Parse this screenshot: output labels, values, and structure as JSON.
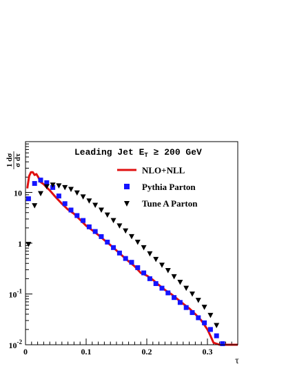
{
  "chart_data": {
    "type": "scatter",
    "title": {
      "prefix": "Leading Jet E",
      "subscript": "T",
      "suffix": " ≥ 200 GeV"
    },
    "xlabel": "τ",
    "ylabel": {
      "numerator": "1 dσ",
      "denominator": "σ dτ"
    },
    "xlim": [
      0,
      0.35
    ],
    "ylim": [
      0.01,
      100
    ],
    "yscale": "log",
    "xticks": [
      {
        "value": 0,
        "label": "0"
      },
      {
        "value": 0.1,
        "label": "0.1"
      },
      {
        "value": 0.2,
        "label": "0.2"
      },
      {
        "value": 0.3,
        "label": "0.3"
      }
    ],
    "yticks": [
      {
        "value": 0.01,
        "base": "10",
        "exp": "-2"
      },
      {
        "value": 0.1,
        "base": "10",
        "exp": "-1"
      },
      {
        "value": 1,
        "base": "1",
        "exp": ""
      },
      {
        "value": 10,
        "base": "10",
        "exp": ""
      }
    ],
    "legend_position": "top-right",
    "series": [
      {
        "name": "NLO+NLL",
        "type": "line",
        "color": "#e01010",
        "x": [
          0.003,
          0.006,
          0.009,
          0.012,
          0.015,
          0.018,
          0.021,
          0.025,
          0.03,
          0.035,
          0.04,
          0.05,
          0.06,
          0.07,
          0.08,
          0.09,
          0.1,
          0.11,
          0.12,
          0.13,
          0.14,
          0.15,
          0.16,
          0.17,
          0.18,
          0.19,
          0.2,
          0.21,
          0.22,
          0.23,
          0.24,
          0.25,
          0.26,
          0.27,
          0.28,
          0.29,
          0.3,
          0.305,
          0.31,
          0.32,
          0.35
        ],
        "y": [
          12,
          21,
          25,
          25,
          22,
          23,
          20,
          16,
          14.5,
          12.5,
          11,
          8,
          6,
          4.6,
          3.8,
          2.9,
          2.2,
          1.8,
          1.45,
          1.15,
          0.92,
          0.72,
          0.56,
          0.44,
          0.35,
          0.26,
          0.23,
          0.19,
          0.15,
          0.12,
          0.1,
          0.08,
          0.064,
          0.052,
          0.04,
          0.03,
          0.02,
          0.015,
          0.011,
          0.01,
          0.01
        ]
      },
      {
        "name": "Pythia Parton",
        "type": "scatter",
        "marker": "square",
        "color": "#1414ff",
        "x": [
          0.005,
          0.015,
          0.025,
          0.035,
          0.045,
          0.055,
          0.065,
          0.075,
          0.085,
          0.095,
          0.105,
          0.115,
          0.125,
          0.135,
          0.145,
          0.155,
          0.165,
          0.175,
          0.185,
          0.195,
          0.205,
          0.215,
          0.225,
          0.235,
          0.245,
          0.255,
          0.265,
          0.275,
          0.285,
          0.295,
          0.305,
          0.315,
          0.325
        ],
        "y": [
          7.5,
          15,
          17.5,
          15.5,
          12.5,
          8.5,
          6,
          4.5,
          3.5,
          2.8,
          2.1,
          1.7,
          1.35,
          1.05,
          0.82,
          0.64,
          0.5,
          0.42,
          0.33,
          0.26,
          0.2,
          0.16,
          0.13,
          0.105,
          0.085,
          0.068,
          0.054,
          0.043,
          0.034,
          0.027,
          0.02,
          0.015,
          0.0105
        ]
      },
      {
        "name": "Tune A Parton",
        "type": "scatter",
        "marker": "triangle-down",
        "color": "#000000",
        "x": [
          0.005,
          0.015,
          0.025,
          0.035,
          0.045,
          0.055,
          0.065,
          0.075,
          0.085,
          0.095,
          0.105,
          0.115,
          0.125,
          0.135,
          0.145,
          0.155,
          0.165,
          0.175,
          0.185,
          0.195,
          0.205,
          0.215,
          0.225,
          0.235,
          0.245,
          0.255,
          0.265,
          0.275,
          0.285,
          0.295,
          0.305,
          0.315
        ],
        "y": [
          0.95,
          5.5,
          9.5,
          13,
          14,
          13.5,
          12.5,
          11.5,
          9.8,
          8.2,
          6.8,
          5.6,
          4.5,
          3.6,
          2.8,
          2.2,
          1.75,
          1.35,
          1.05,
          0.82,
          0.62,
          0.48,
          0.37,
          0.29,
          0.22,
          0.17,
          0.13,
          0.1,
          0.075,
          0.055,
          0.038,
          0.024
        ]
      }
    ]
  }
}
